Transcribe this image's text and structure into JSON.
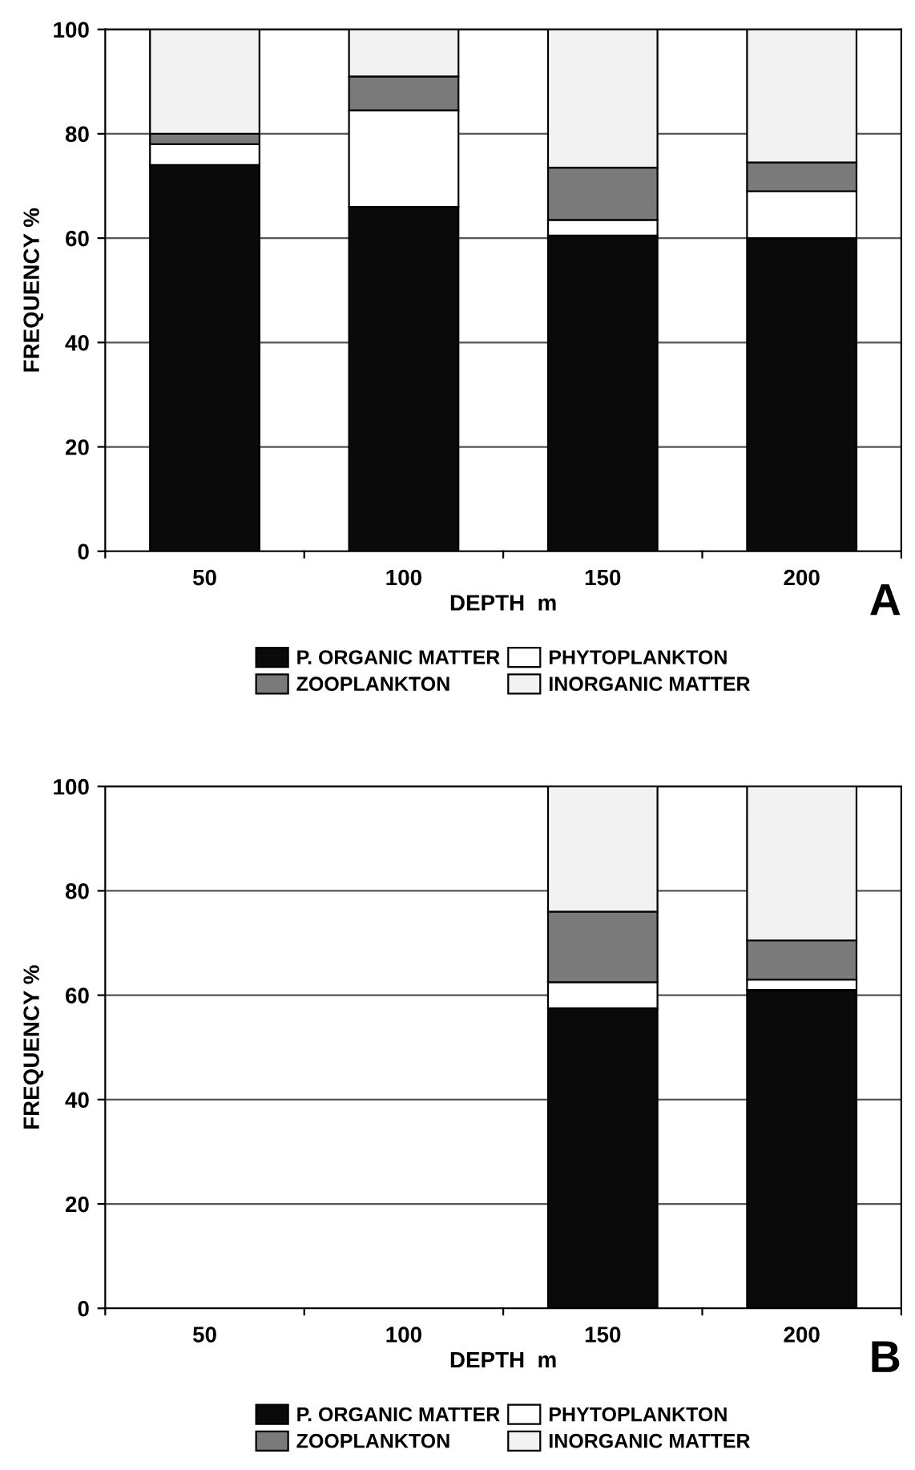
{
  "chart_data": [
    {
      "type": "bar",
      "stacked": true,
      "xlabel": "DEPTH  m",
      "ylabel": "FREQUENCY %",
      "categories": [
        "50",
        "100",
        "150",
        "200"
      ],
      "ylim": [
        0,
        100
      ],
      "yticks": [
        0,
        20,
        40,
        60,
        80,
        100
      ],
      "grid": "y",
      "legend": "bottom",
      "annotations": [
        "A"
      ],
      "series": [
        {
          "name": "P. ORGANIC MATTER",
          "color": "#0a0a0a",
          "values": [
            74,
            66,
            60.5,
            60
          ]
        },
        {
          "name": "PHYTOPLANKTON",
          "color": "#ffffff",
          "values": [
            4,
            18.5,
            3,
            9
          ]
        },
        {
          "name": "ZOOPLANKTON",
          "color": "#7a7a7a",
          "values": [
            2,
            6.5,
            10,
            5.5
          ]
        },
        {
          "name": "INORGANIC MATTER",
          "color": "#f2f2f2",
          "values": [
            20,
            9,
            26.5,
            25.5
          ]
        }
      ]
    },
    {
      "type": "bar",
      "stacked": true,
      "xlabel": "DEPTH  m",
      "ylabel": "FREQUENCY %",
      "categories": [
        "50",
        "100",
        "150",
        "200"
      ],
      "ylim": [
        0,
        100
      ],
      "yticks": [
        0,
        20,
        40,
        60,
        80,
        100
      ],
      "grid": "y",
      "legend": "bottom",
      "annotations": [
        "B"
      ],
      "series": [
        {
          "name": "P. ORGANIC MATTER",
          "color": "#0a0a0a",
          "values": [
            null,
            null,
            57.5,
            61
          ]
        },
        {
          "name": "PHYTOPLANKTON",
          "color": "#ffffff",
          "values": [
            null,
            null,
            5,
            2
          ]
        },
        {
          "name": "ZOOPLANKTON",
          "color": "#7a7a7a",
          "values": [
            null,
            null,
            13.5,
            7.5
          ]
        },
        {
          "name": "INORGANIC MATTER",
          "color": "#f2f2f2",
          "values": [
            null,
            null,
            24,
            29.5
          ]
        }
      ]
    }
  ]
}
